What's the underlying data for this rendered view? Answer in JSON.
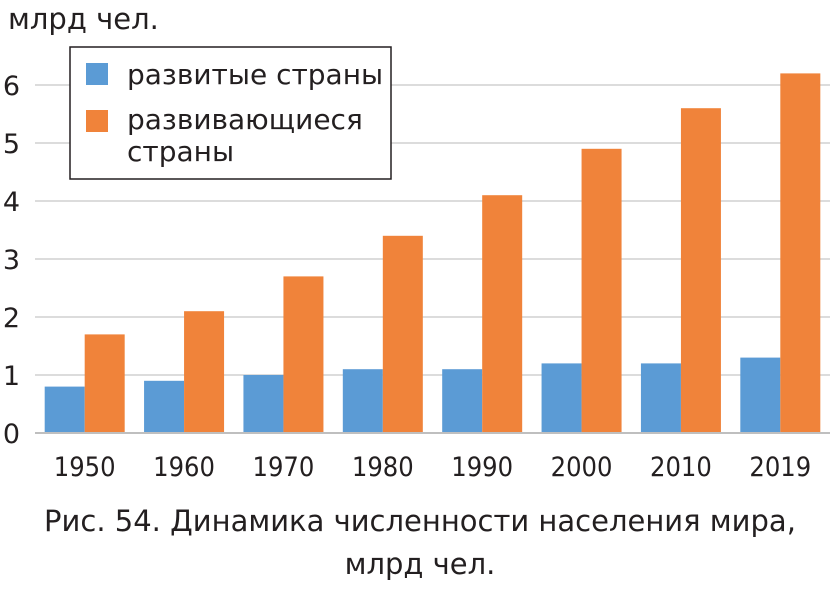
{
  "chart_data": {
    "type": "bar",
    "ylabel": "млрд чел.",
    "caption_line1": "Рис. 54. Динамика численности населения мира,",
    "caption_line2": "млрд чел.",
    "categories": [
      "1950",
      "1960",
      "1970",
      "1980",
      "1990",
      "2000",
      "2010",
      "2019"
    ],
    "series": [
      {
        "name": "развитые страны",
        "color": "#5b9bd5",
        "values": [
          0.8,
          0.9,
          1.0,
          1.1,
          1.1,
          1.2,
          1.2,
          1.3
        ]
      },
      {
        "name": "развивающиеся страны",
        "name_lines": [
          "развивающиеся",
          "страны"
        ],
        "color": "#f0833a",
        "values": [
          1.7,
          2.1,
          2.7,
          3.4,
          4.1,
          4.9,
          5.6,
          6.2
        ]
      }
    ],
    "ylim": [
      0,
      6.5
    ],
    "yticks": [
      0,
      1,
      2,
      3,
      4,
      5,
      6
    ],
    "grid": true,
    "legend_position": "top-left"
  }
}
